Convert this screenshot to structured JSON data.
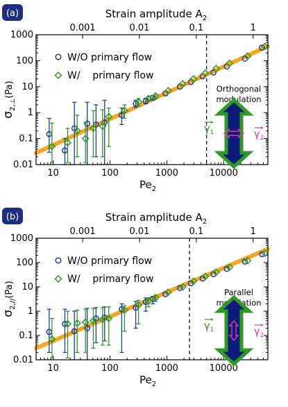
{
  "chart_data": [
    {
      "type": "scatter",
      "panel_label": "(a)",
      "top_axis_label": "Strain amplitude A",
      "top_axis_sub": "2",
      "top_ticks": [
        "0.001",
        "0.01",
        "0.1",
        "1"
      ],
      "top_tick_values_pe": [
        33,
        330,
        3300,
        33000
      ],
      "xlabel": "Pe",
      "xlabel_sub": "2",
      "ylabel": "σ",
      "ylabel_sub": "2,⊥",
      "ylabel_unit": "(Pa)",
      "x_scale": "log",
      "y_scale": "log",
      "xlim": [
        5,
        60000
      ],
      "ylim": [
        0.01,
        1000
      ],
      "x_ticks": [
        "10",
        "100",
        "1000",
        "10000"
      ],
      "y_ticks": [
        "0.01",
        "0.1",
        "1",
        "10",
        "100",
        "1000"
      ],
      "vline_pe": 5000,
      "annotation_lines": [
        "Orthogonal",
        "modulation"
      ],
      "arrow_orientation": "orthogonal",
      "gamma_label": "γ",
      "gamma_sub1": "1",
      "gamma_sub2": "2",
      "legend": {
        "position": "top-left",
        "entries": [
          "W/O primary flow",
          "W/    primary flow"
        ]
      },
      "fit_line": {
        "x": [
          5,
          60000
        ],
        "y": [
          0.028,
          360
        ]
      },
      "series": [
        {
          "name": "W/O primary flow",
          "marker": "circle",
          "color": "#1e3aa8",
          "points": [
            {
              "x": 9,
              "y": 0.15,
              "lo": 0.03,
              "hi": 0.6
            },
            {
              "x": 17,
              "y": 0.035,
              "lo": 0.01,
              "hi": 0.1
            },
            {
              "x": 25,
              "y": 0.25,
              "lo": 0.01,
              "hi": 2.5
            },
            {
              "x": 42,
              "y": 0.38,
              "lo": 0.01,
              "hi": 2.5
            },
            {
              "x": 60,
              "y": 0.35,
              "lo": 0.02,
              "hi": 2.0
            },
            {
              "x": 85,
              "y": 0.42,
              "lo": 0.01,
              "hi": 3.0
            },
            {
              "x": 170,
              "y": 0.8,
              "lo": 0.35,
              "hi": 1.5
            },
            {
              "x": 300,
              "y": 2.2,
              "lo": 1.6,
              "hi": 3.0
            },
            {
              "x": 450,
              "y": 2.8,
              "lo": 2.2,
              "hi": 3.6
            },
            {
              "x": 600,
              "y": 3.7,
              "lo": 3.0,
              "hi": 4.5
            },
            {
              "x": 1000,
              "y": 5.5
            },
            {
              "x": 1800,
              "y": 10
            },
            {
              "x": 2800,
              "y": 15
            },
            {
              "x": 4500,
              "y": 25
            },
            {
              "x": 7000,
              "y": 35
            },
            {
              "x": 12000,
              "y": 60
            },
            {
              "x": 25000,
              "y": 120
            },
            {
              "x": 50000,
              "y": 320
            }
          ]
        },
        {
          "name": "W/    primary flow",
          "marker": "diamond",
          "color": "#2e9a25",
          "points": [
            {
              "x": 9,
              "y": 0.05,
              "lo": 0.012,
              "hi": 0.4
            },
            {
              "x": 17,
              "y": 0.07,
              "lo": 0.012,
              "hi": 0.25
            },
            {
              "x": 25,
              "y": 0.2,
              "lo": 0.02,
              "hi": 0.8
            },
            {
              "x": 35,
              "y": 0.1,
              "lo": 0.012,
              "hi": 0.4
            },
            {
              "x": 48,
              "y": 0.25,
              "lo": 0.02,
              "hi": 1.2
            },
            {
              "x": 70,
              "y": 0.3,
              "lo": 0.02,
              "hi": 1.3
            },
            {
              "x": 90,
              "y": 0.7,
              "lo": 0.05,
              "hi": 1.5
            },
            {
              "x": 170,
              "y": 1.2,
              "lo": 0.6,
              "hi": 2.0
            },
            {
              "x": 300,
              "y": 2.6,
              "lo": 1.8,
              "hi": 3.5
            },
            {
              "x": 450,
              "y": 3.5,
              "lo": 2.8,
              "hi": 4.2
            },
            {
              "x": 600,
              "y": 4.4,
              "lo": 3.6,
              "hi": 5.2
            },
            {
              "x": 1000,
              "y": 7
            },
            {
              "x": 1800,
              "y": 13
            },
            {
              "x": 2800,
              "y": 20
            },
            {
              "x": 4500,
              "y": 33
            },
            {
              "x": 7000,
              "y": 50
            },
            {
              "x": 12000,
              "y": 80
            },
            {
              "x": 25000,
              "y": 150
            },
            {
              "x": 50000,
              "y": 350
            }
          ]
        }
      ]
    },
    {
      "type": "scatter",
      "panel_label": "(b)",
      "top_axis_label": "Strain amplitude A",
      "top_axis_sub": "2",
      "top_ticks": [
        "0.001",
        "0.01",
        "0.1",
        "1"
      ],
      "top_tick_values_pe": [
        33,
        330,
        3300,
        33000
      ],
      "xlabel": "Pe",
      "xlabel_sub": "2",
      "ylabel": "σ",
      "ylabel_sub": "2,//",
      "ylabel_unit": "(Pa)",
      "x_scale": "log",
      "y_scale": "log",
      "xlim": [
        5,
        60000
      ],
      "ylim": [
        0.01,
        1000
      ],
      "x_ticks": [
        "10",
        "100",
        "1000",
        "10000"
      ],
      "y_ticks": [
        "0.01",
        "0.1",
        "1",
        "10",
        "100",
        "1000"
      ],
      "vline_pe": 2500,
      "annotation_lines": [
        "Parallel",
        "modulation"
      ],
      "arrow_orientation": "parallel",
      "gamma_label": "γ",
      "gamma_sub1": "1",
      "gamma_sub2": "2",
      "legend": {
        "position": "top-left",
        "entries": [
          "W/O primary flow",
          "W/    primary flow"
        ]
      },
      "fit_line": {
        "x": [
          5,
          60000
        ],
        "y": [
          0.03,
          360
        ]
      },
      "series": [
        {
          "name": "W/O primary flow",
          "marker": "circle",
          "color": "#1e3aa8",
          "points": [
            {
              "x": 9,
              "y": 0.14,
              "lo": 0.02,
              "hi": 1.2
            },
            {
              "x": 17,
              "y": 0.3,
              "lo": 0.02,
              "hi": 1.2
            },
            {
              "x": 25,
              "y": 0.15,
              "lo": 0.01,
              "hi": 1.0
            },
            {
              "x": 42,
              "y": 0.2,
              "lo": 0.01,
              "hi": 1.3
            },
            {
              "x": 60,
              "y": 0.5,
              "lo": 0.05,
              "hi": 1.4
            },
            {
              "x": 85,
              "y": 0.55,
              "lo": 0.06,
              "hi": 1.5
            },
            {
              "x": 170,
              "y": 1.2,
              "lo": 0.02,
              "hi": 2.0
            },
            {
              "x": 300,
              "y": 1.4,
              "lo": 0.2,
              "hi": 2.5
            },
            {
              "x": 450,
              "y": 2.4,
              "lo": 1.0,
              "hi": 3.5
            },
            {
              "x": 600,
              "y": 3.2,
              "lo": 2.0,
              "hi": 4.0
            },
            {
              "x": 1000,
              "y": 5
            },
            {
              "x": 1800,
              "y": 9
            },
            {
              "x": 2800,
              "y": 14
            },
            {
              "x": 4500,
              "y": 22
            },
            {
              "x": 7000,
              "y": 33
            },
            {
              "x": 12000,
              "y": 55
            },
            {
              "x": 25000,
              "y": 110
            },
            {
              "x": 50000,
              "y": 220
            }
          ]
        },
        {
          "name": "W/    primary flow",
          "marker": "diamond",
          "color": "#2e9a25",
          "points": [
            {
              "x": 9,
              "y": 0.07,
              "lo": 0.012,
              "hi": 0.5
            },
            {
              "x": 17,
              "y": 0.3,
              "lo": 0.012,
              "hi": 1.0
            },
            {
              "x": 25,
              "y": 0.32,
              "lo": 0.02,
              "hi": 1.1
            },
            {
              "x": 35,
              "y": 0.35,
              "lo": 0.02,
              "hi": 1.2
            },
            {
              "x": 48,
              "y": 0.4,
              "lo": 0.03,
              "hi": 1.3
            },
            {
              "x": 70,
              "y": 0.45,
              "lo": 0.04,
              "hi": 1.4
            },
            {
              "x": 90,
              "y": 0.5,
              "lo": 0.04,
              "hi": 1.5
            },
            {
              "x": 170,
              "y": 1.1,
              "lo": 0.15,
              "hi": 1.7
            },
            {
              "x": 300,
              "y": 1.8,
              "lo": 0.3,
              "hi": 2.8
            },
            {
              "x": 450,
              "y": 2.6,
              "lo": 1.5,
              "hi": 3.6
            },
            {
              "x": 600,
              "y": 3.6,
              "lo": 2.5,
              "hi": 4.5
            },
            {
              "x": 1000,
              "y": 6
            },
            {
              "x": 1800,
              "y": 10
            },
            {
              "x": 2800,
              "y": 17
            },
            {
              "x": 4500,
              "y": 27
            },
            {
              "x": 7000,
              "y": 40
            },
            {
              "x": 12000,
              "y": 65
            },
            {
              "x": 25000,
              "y": 120
            },
            {
              "x": 50000,
              "y": 240
            }
          ]
        }
      ]
    }
  ]
}
